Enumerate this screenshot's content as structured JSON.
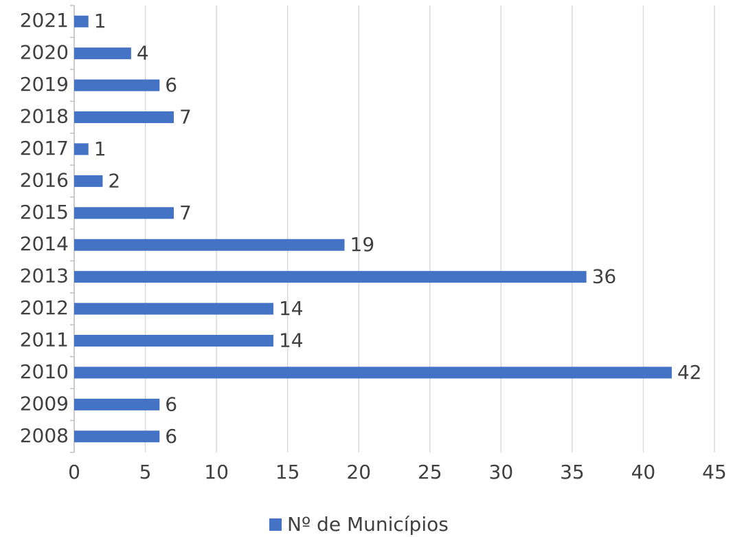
{
  "chart_data": {
    "type": "bar",
    "orientation": "horizontal",
    "categories": [
      "2008",
      "2009",
      "2010",
      "2011",
      "2012",
      "2013",
      "2014",
      "2015",
      "2016",
      "2017",
      "2018",
      "2019",
      "2020",
      "2021"
    ],
    "series": [
      {
        "name": "Nº de Municípios",
        "color": "#4472c4",
        "values": [
          6,
          6,
          42,
          14,
          14,
          36,
          19,
          7,
          2,
          1,
          7,
          6,
          4,
          1
        ]
      }
    ],
    "xlim": [
      0,
      45
    ],
    "xticks": [
      0,
      5,
      10,
      15,
      20,
      25,
      30,
      35,
      40,
      45
    ],
    "grid": true,
    "legend": "bottom"
  }
}
